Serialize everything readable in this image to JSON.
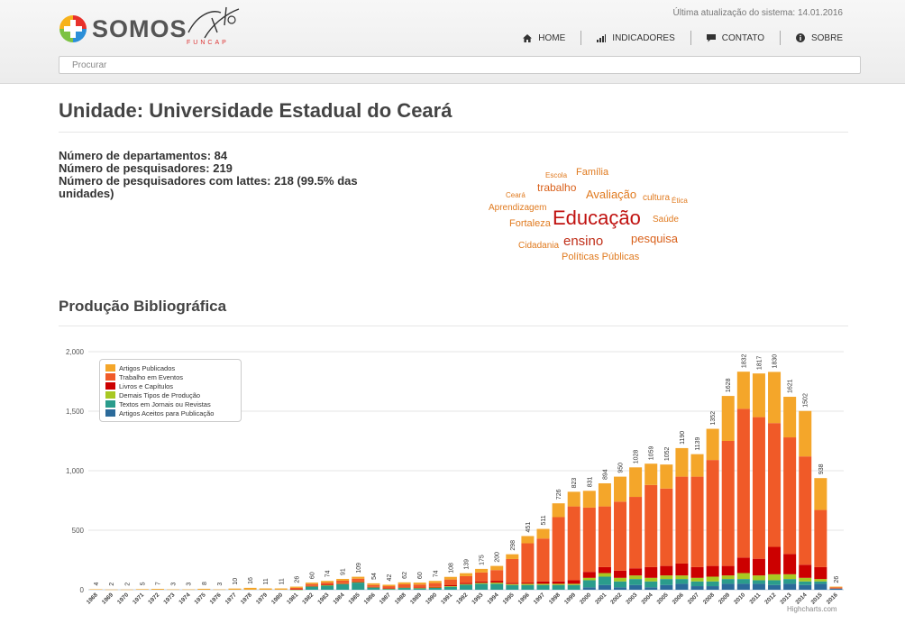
{
  "header": {
    "logo_text": "SOMOS",
    "partner_text": "FUNCAP",
    "last_update": "Última atualização do sistema: 14.01.2016",
    "nav": [
      {
        "label": "HOME",
        "icon": "home-icon"
      },
      {
        "label": "INDICADORES",
        "icon": "bar-chart-icon"
      },
      {
        "label": "CONTATO",
        "icon": "comment-icon"
      },
      {
        "label": "SOBRE",
        "icon": "info-icon"
      }
    ],
    "search_placeholder": "Procurar"
  },
  "page": {
    "title": "Unidade: Universidade Estadual do Ceará",
    "stats": [
      "Número de departamentos: 84",
      "Número de pesquisadores: 219",
      "Número de pesquisadores com lattes: 218 (99.5% das unidades)"
    ],
    "section_title": "Produção Bibliográfica"
  },
  "word_cloud": [
    {
      "text": "Escola",
      "color": "#e07a1f",
      "size": 8
    },
    {
      "text": "Família",
      "color": "#e07a1f",
      "size": 11
    },
    {
      "text": "trabalho",
      "color": "#d9601a",
      "size": 12
    },
    {
      "text": "Ceará",
      "color": "#e07a1f",
      "size": 8
    },
    {
      "text": "Avaliação",
      "color": "#e07a1f",
      "size": 13
    },
    {
      "text": "cultura",
      "color": "#e07a1f",
      "size": 10
    },
    {
      "text": "Ética",
      "color": "#e07a1f",
      "size": 8
    },
    {
      "text": "Aprendizagem",
      "color": "#e07a1f",
      "size": 10
    },
    {
      "text": "Educação",
      "color": "#c0110f",
      "size": 22
    },
    {
      "text": "Fortaleza",
      "color": "#e07a1f",
      "size": 11
    },
    {
      "text": "Saúde",
      "color": "#e07a1f",
      "size": 10
    },
    {
      "text": "Cidadania",
      "color": "#e07a1f",
      "size": 10
    },
    {
      "text": "ensino",
      "color": "#c0301a",
      "size": 15
    },
    {
      "text": "pesquisa",
      "color": "#d9601a",
      "size": 13
    },
    {
      "text": "Políticas Públicas",
      "color": "#e07a1f",
      "size": 11
    }
  ],
  "chart_data": {
    "type": "bar",
    "stacked": true,
    "title": "",
    "xlabel": "",
    "ylabel": "",
    "ylim": [
      0,
      2000
    ],
    "yticks": [
      0,
      500,
      1000,
      1500,
      2000
    ],
    "ytick_labels": [
      "0",
      "500",
      "1,000",
      "1,500",
      "2,000"
    ],
    "legend_position": "top-left",
    "credit": "Highcharts.com",
    "categories": [
      "1968",
      "1969",
      "1970",
      "1971",
      "1972",
      "1973",
      "1974",
      "1975",
      "1976",
      "1977",
      "1978",
      "1979",
      "1980",
      "1981",
      "1982",
      "1983",
      "1984",
      "1985",
      "1986",
      "1987",
      "1988",
      "1989",
      "1990",
      "1991",
      "1992",
      "1993",
      "1994",
      "1995",
      "1996",
      "1997",
      "1998",
      "1999",
      "2000",
      "2001",
      "2002",
      "2003",
      "2004",
      "2005",
      "2006",
      "2007",
      "2008",
      "2009",
      "2010",
      "2011",
      "2012",
      "2013",
      "2014",
      "2015",
      "2016"
    ],
    "totals": [
      4,
      2,
      2,
      5,
      7,
      3,
      3,
      8,
      3,
      10,
      16,
      11,
      11,
      26,
      60,
      74,
      91,
      109,
      54,
      42,
      62,
      60,
      74,
      108,
      139,
      175,
      200,
      298,
      451,
      511,
      726,
      823,
      831,
      894,
      950,
      1028,
      1059,
      1052,
      1190,
      1139,
      1352,
      1628,
      1832,
      1817,
      1830,
      1621,
      1502,
      938,
      26
    ],
    "series": [
      {
        "name": "Artigos Publicados",
        "color": "#f4a62a",
        "values": [
          4,
          2,
          2,
          5,
          7,
          3,
          3,
          8,
          3,
          10,
          16,
          11,
          11,
          10,
          12,
          14,
          15,
          16,
          14,
          12,
          16,
          16,
          18,
          22,
          25,
          30,
          35,
          40,
          61,
          81,
          116,
          123,
          141,
          194,
          210,
          248,
          179,
          202,
          240,
          189,
          262,
          378,
          312,
          367,
          430,
          341,
          382,
          268,
          6
        ]
      },
      {
        "name": "Trabalho em Eventos",
        "color": "#f05a28",
        "values": [
          0,
          0,
          0,
          0,
          0,
          0,
          0,
          0,
          0,
          0,
          0,
          0,
          0,
          12,
          16,
          18,
          22,
          24,
          16,
          18,
          24,
          26,
          32,
          48,
          56,
          75,
          90,
          200,
          330,
          360,
          540,
          620,
          540,
          510,
          580,
          600,
          690,
          650,
          730,
          760,
          890,
          1050,
          1250,
          1190,
          1040,
          980,
          910,
          480,
          10
        ]
      },
      {
        "name": "Livros e Capítulos",
        "color": "#cc0000",
        "values": [
          0,
          0,
          0,
          0,
          0,
          0,
          0,
          0,
          0,
          0,
          0,
          0,
          0,
          2,
          3,
          4,
          4,
          5,
          3,
          3,
          4,
          4,
          5,
          8,
          10,
          12,
          15,
          10,
          10,
          20,
          20,
          30,
          50,
          50,
          60,
          60,
          90,
          80,
          100,
          90,
          90,
          80,
          130,
          140,
          230,
          170,
          110,
          100,
          0
        ]
      },
      {
        "name": "Demais Tipos de Produção",
        "color": "#a8c822",
        "values": [
          0,
          0,
          0,
          0,
          0,
          0,
          0,
          0,
          0,
          0,
          0,
          0,
          0,
          1,
          2,
          2,
          3,
          4,
          2,
          2,
          3,
          2,
          3,
          5,
          6,
          8,
          10,
          8,
          10,
          10,
          10,
          10,
          20,
          30,
          30,
          30,
          30,
          30,
          30,
          30,
          40,
          30,
          50,
          40,
          50,
          40,
          30,
          20,
          0
        ]
      },
      {
        "name": "Textos em Jornais ou Revistas",
        "color": "#2a9c8c",
        "values": [
          0,
          0,
          0,
          0,
          0,
          0,
          0,
          0,
          0,
          0,
          0,
          0,
          0,
          1,
          27,
          36,
          47,
          60,
          19,
          7,
          15,
          12,
          16,
          25,
          42,
          50,
          50,
          40,
          40,
          40,
          40,
          40,
          60,
          70,
          50,
          50,
          50,
          50,
          40,
          40,
          40,
          40,
          40,
          30,
          40,
          40,
          30,
          20,
          0
        ]
      },
      {
        "name": "Artigos Aceitos para Publicação",
        "color": "#2b6a9a",
        "values": [
          0,
          0,
          0,
          0,
          0,
          0,
          0,
          0,
          0,
          0,
          0,
          0,
          0,
          0,
          0,
          0,
          0,
          0,
          0,
          0,
          0,
          0,
          0,
          0,
          0,
          0,
          0,
          0,
          0,
          0,
          0,
          0,
          20,
          40,
          20,
          40,
          20,
          40,
          50,
          30,
          30,
          50,
          50,
          50,
          40,
          50,
          40,
          50,
          10
        ]
      }
    ]
  }
}
